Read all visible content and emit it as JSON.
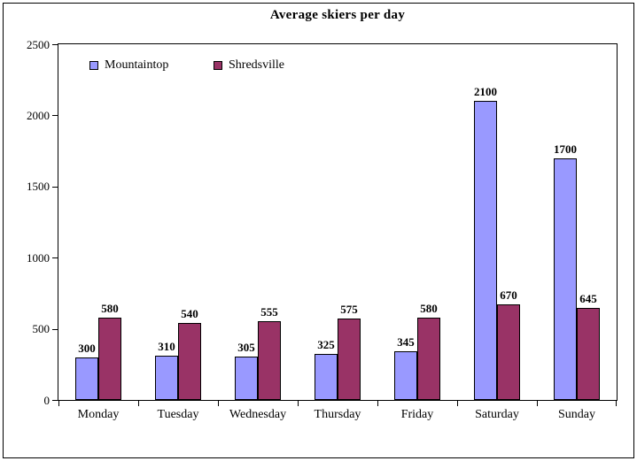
{
  "chart_data": {
    "type": "bar",
    "title": "Average skiers per day",
    "categories": [
      "Monday",
      "Tuesday",
      "Wednesday",
      "Thursday",
      "Friday",
      "Saturday",
      "Sunday"
    ],
    "series": [
      {
        "name": "Mountaintop",
        "color": "#9999FF",
        "values": [
          300,
          310,
          305,
          325,
          345,
          2100,
          1700
        ]
      },
      {
        "name": "Shredsville",
        "color": "#993366",
        "values": [
          580,
          540,
          555,
          575,
          580,
          670,
          645
        ]
      }
    ],
    "xlabel": "",
    "ylabel": "",
    "ylim": [
      0,
      2500
    ],
    "yticks": [
      0,
      500,
      1000,
      1500,
      2000,
      2500
    ],
    "grid": false,
    "legend_position": "inside-top-left",
    "data_labels": true,
    "bar_border_color": "#000000",
    "background_color": "#FFFFFF",
    "text_color": "#000000"
  }
}
